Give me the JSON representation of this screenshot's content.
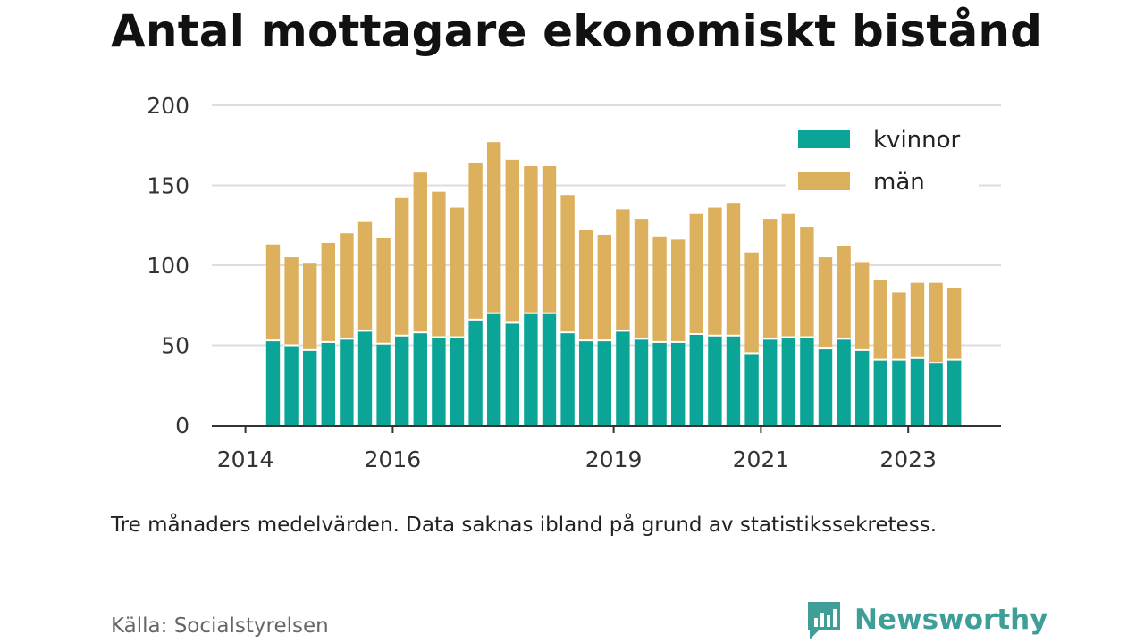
{
  "title": "Antal mottagare ekonomiskt bistånd",
  "caption": "Tre månaders medelvärden. Data saknas ibland på grund av statistikssekretess.",
  "source": "Källa: Socialstyrelsen",
  "brand": {
    "name": "Newsworthy",
    "icon": "newsworthy-logo-icon",
    "color": "#3f9e98"
  },
  "colors": {
    "kvinnor": "#0aa596",
    "man": "#ddb05e",
    "grid": "#dddddd",
    "axis": "#333333"
  },
  "chart_data": {
    "type": "bar",
    "stacked": true,
    "title": "Antal mottagare ekonomiskt bistånd",
    "xlabel": "",
    "ylabel": "",
    "ylim": [
      0,
      200
    ],
    "yticks": [
      0,
      50,
      100,
      150,
      200
    ],
    "grid": true,
    "legend_position": "top-right",
    "x_ticks": [
      {
        "label": "2014",
        "index": -1.5
      },
      {
        "label": "2016",
        "index": 6.5
      },
      {
        "label": "2019",
        "index": 18.5
      },
      {
        "label": "2021",
        "index": 26.5
      },
      {
        "label": "2023",
        "index": 34.5
      }
    ],
    "series": [
      {
        "name": "kvinnor",
        "color": "#0aa596",
        "values": [
          53,
          50,
          47,
          52,
          54,
          59,
          51,
          56,
          58,
          55,
          55,
          66,
          70,
          64,
          70,
          70,
          58,
          53,
          53,
          59,
          54,
          52,
          52,
          57,
          56,
          56,
          45,
          54,
          55,
          55,
          48,
          54,
          47,
          41,
          41,
          42,
          39,
          41
        ]
      },
      {
        "name": "män",
        "color": "#ddb05e",
        "values": [
          60,
          55,
          54,
          62,
          66,
          68,
          66,
          86,
          100,
          91,
          81,
          98,
          107,
          102,
          92,
          92,
          86,
          69,
          66,
          76,
          75,
          66,
          64,
          75,
          80,
          83,
          63,
          75,
          77,
          69,
          57,
          58,
          55,
          50,
          42,
          47,
          50,
          45
        ]
      }
    ]
  }
}
